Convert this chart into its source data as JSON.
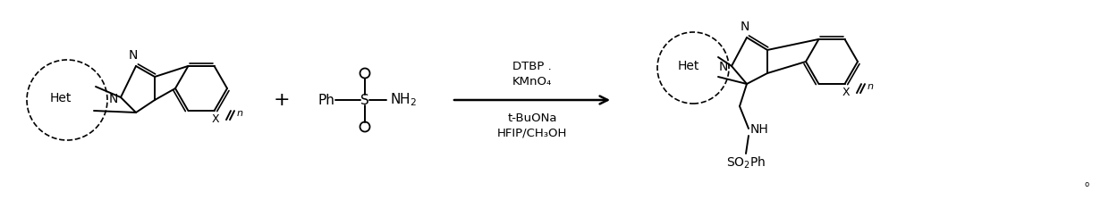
{
  "bg_color": "#ffffff",
  "fig_width": 12.4,
  "fig_height": 2.24,
  "dpi": 100,
  "reagents_line1": "DTBP .",
  "reagents_line2": "KMnO₄",
  "reagents_line3": "t-BuONa",
  "reagents_line4": "HFIP/CH₃OH",
  "font_size_reagents": 9.5,
  "font_size_labels": 10,
  "line_color": "#000000"
}
